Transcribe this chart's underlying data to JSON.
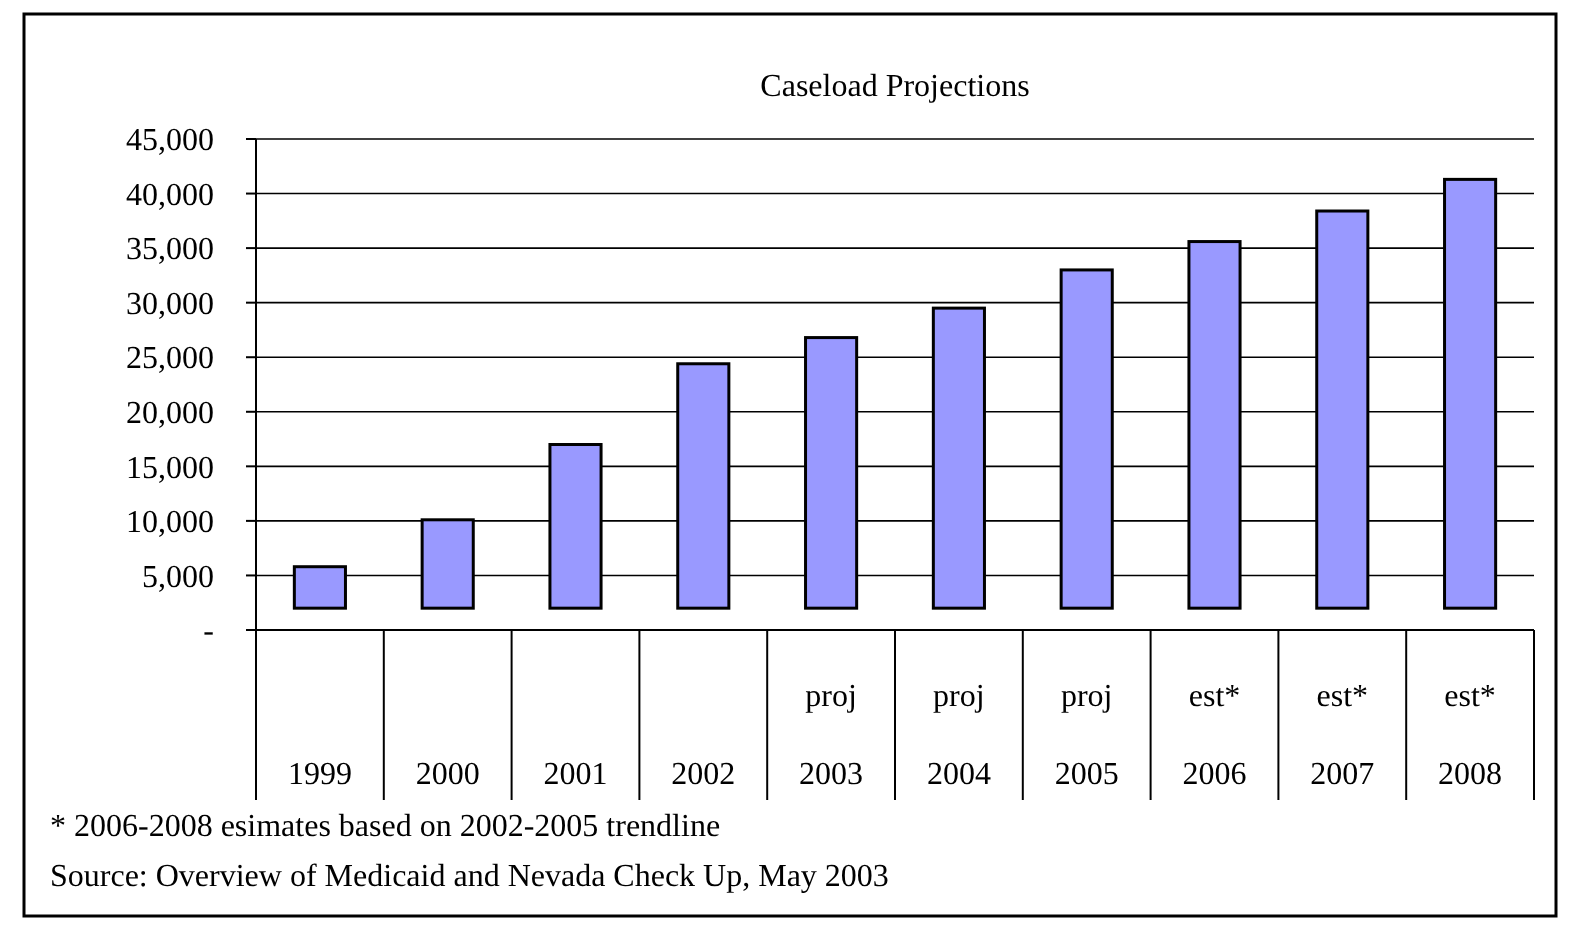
{
  "chart_data": {
    "type": "bar",
    "title": "Caseload Projections",
    "categories": [
      "1999",
      "2000",
      "2001",
      "2002",
      "proj\n2003",
      "proj\n2004",
      "proj\n2005",
      "est*\n2006",
      "est*\n2007",
      "est*\n2008"
    ],
    "base": [
      2000,
      2000,
      2000,
      2000,
      2000,
      2000,
      2000,
      2000,
      2000,
      2000
    ],
    "values": [
      3800,
      8100,
      15000,
      22400,
      24800,
      27500,
      31000,
      33600,
      36400,
      39300
    ],
    "color": "#9999ff",
    "ylim": [
      0,
      45000
    ],
    "yticks": [
      {
        "value": 0,
        "label": "-"
      },
      {
        "value": 5000,
        "label": "5,000"
      },
      {
        "value": 10000,
        "label": "10,000"
      },
      {
        "value": 15000,
        "label": "15,000"
      },
      {
        "value": 20000,
        "label": "20,000"
      },
      {
        "value": 25000,
        "label": "25,000"
      },
      {
        "value": 30000,
        "label": "30,000"
      },
      {
        "value": 35000,
        "label": "35,000"
      },
      {
        "value": 40000,
        "label": "40,000"
      },
      {
        "value": 45000,
        "label": "45,000"
      }
    ],
    "grid": "y",
    "annotations": [
      "* 2006-2008 esimates based on 2002-2005 trendline",
      "Source: Overview of Medicaid and Nevada Check Up, May 2003"
    ]
  }
}
